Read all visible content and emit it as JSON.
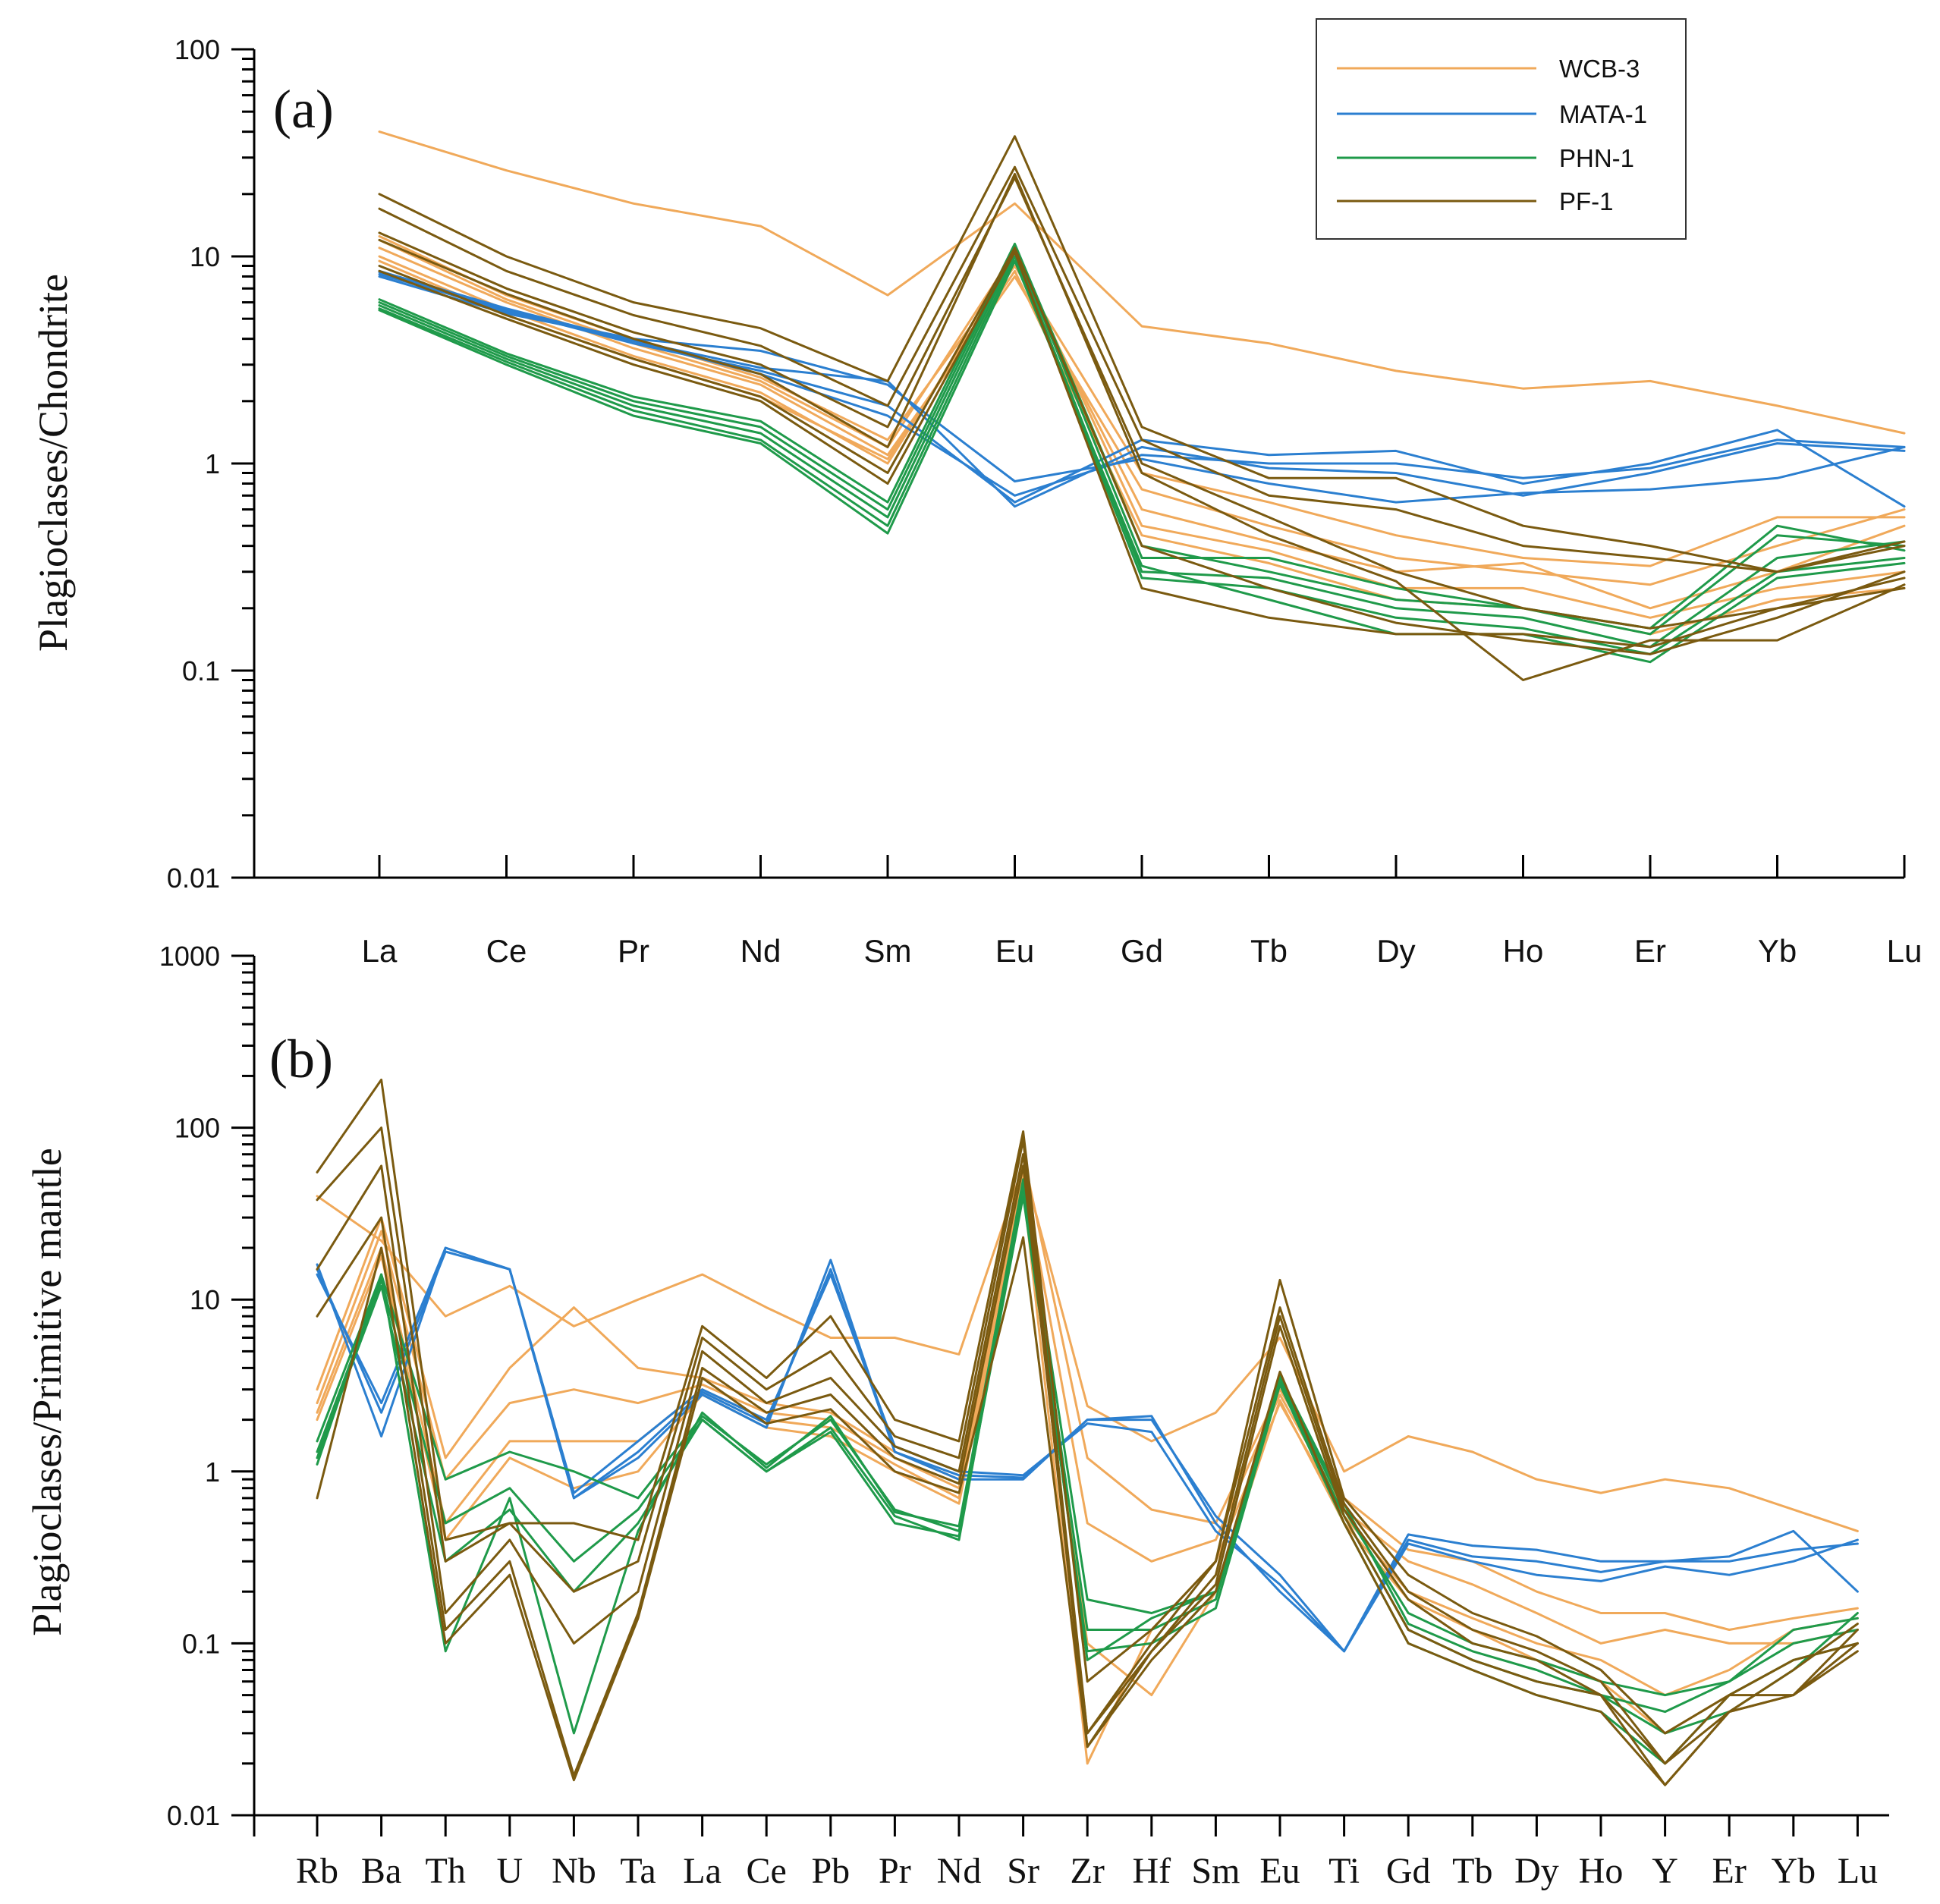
{
  "colors": {
    "WCB-3": "#f0a95a",
    "MATA-1": "#2b7fd0",
    "PHN-1": "#1f9a4a",
    "PF-1": "#7a5a10"
  },
  "legend": {
    "entries": [
      "WCB-3",
      "MATA-1",
      "PHN-1",
      "PF-1"
    ]
  },
  "chart_data": [
    {
      "type": "line",
      "panel": "(a)",
      "ylabel": "Plagioclases/Chondrite",
      "yscale": "log",
      "ylim": [
        0.01,
        100
      ],
      "ytick_labels": [
        "100",
        "10",
        "1",
        "0.1",
        "0.01"
      ],
      "categories": [
        "La",
        "Ce",
        "Pr",
        "Nd",
        "Sm",
        "Eu",
        "Gd",
        "Tb",
        "Dy",
        "Ho",
        "Er",
        "Yb",
        "Lu"
      ],
      "series": [
        {
          "name": "WCB-3",
          "values": [
            40,
            26,
            18,
            14,
            6.5,
            18,
            4.6,
            3.8,
            2.8,
            2.3,
            2.5,
            1.9,
            1.4
          ]
        },
        {
          "name": "WCB-3",
          "values": [
            12.5,
            6.5,
            4.0,
            2.6,
            1.3,
            9,
            0.9,
            0.65,
            0.45,
            0.35,
            0.32,
            0.55,
            0.55
          ]
        },
        {
          "name": "WCB-3",
          "values": [
            11,
            6.0,
            3.6,
            2.4,
            1.1,
            8,
            0.75,
            0.5,
            0.35,
            0.3,
            0.26,
            0.4,
            0.6
          ]
        },
        {
          "name": "WCB-3",
          "values": [
            10,
            5.5,
            3.3,
            2.2,
            1.0,
            9.5,
            0.6,
            0.42,
            0.3,
            0.33,
            0.2,
            0.3,
            0.5
          ]
        },
        {
          "name": "WCB-3",
          "values": [
            12,
            6.2,
            3.8,
            2.5,
            1.2,
            10.5,
            0.5,
            0.38,
            0.25,
            0.25,
            0.18,
            0.25,
            0.3
          ]
        },
        {
          "name": "WCB-3",
          "values": [
            9.5,
            5.2,
            3.2,
            2.1,
            1.05,
            8.5,
            0.45,
            0.33,
            0.22,
            0.2,
            0.15,
            0.22,
            0.25
          ]
        },
        {
          "name": "MATA-1",
          "values": [
            8.5,
            5.6,
            3.9,
            2.9,
            2.5,
            0.62,
            1.2,
            0.95,
            0.9,
            0.7,
            0.9,
            1.25,
            1.15
          ]
        },
        {
          "name": "MATA-1",
          "values": [
            8.0,
            5.3,
            4.0,
            3.5,
            2.4,
            0.82,
            1.05,
            0.8,
            0.65,
            0.72,
            0.75,
            0.85,
            1.2
          ]
        },
        {
          "name": "MATA-1",
          "values": [
            8.2,
            5.5,
            3.8,
            2.8,
            1.9,
            0.65,
            1.3,
            1.1,
            1.15,
            0.8,
            1.0,
            1.45,
            0.62
          ]
        },
        {
          "name": "MATA-1",
          "values": [
            8.4,
            5.4,
            3.9,
            2.7,
            1.7,
            0.7,
            1.1,
            1.0,
            1.0,
            0.85,
            0.95,
            1.3,
            1.2
          ]
        },
        {
          "name": "PHN-1",
          "values": [
            6.0,
            3.3,
            2.0,
            1.5,
            0.6,
            11,
            0.35,
            0.35,
            0.25,
            0.2,
            0.15,
            0.45,
            0.4
          ]
        },
        {
          "name": "PHN-1",
          "values": [
            5.8,
            3.2,
            1.9,
            1.4,
            0.55,
            10.5,
            0.3,
            0.28,
            0.2,
            0.18,
            0.13,
            0.35,
            0.42
          ]
        },
        {
          "name": "PHN-1",
          "values": [
            5.6,
            3.1,
            1.8,
            1.3,
            0.5,
            10,
            0.28,
            0.25,
            0.18,
            0.16,
            0.12,
            0.3,
            0.35
          ]
        },
        {
          "name": "PHN-1",
          "values": [
            6.2,
            3.4,
            2.1,
            1.6,
            0.65,
            11.5,
            0.4,
            0.3,
            0.22,
            0.2,
            0.16,
            0.5,
            0.38
          ]
        },
        {
          "name": "PHN-1",
          "values": [
            5.5,
            3.0,
            1.7,
            1.25,
            0.46,
            9.5,
            0.32,
            0.22,
            0.15,
            0.15,
            0.11,
            0.28,
            0.33
          ]
        },
        {
          "name": "PF-1",
          "values": [
            20,
            10,
            6,
            4.5,
            2.5,
            38,
            1.5,
            0.85,
            0.85,
            0.5,
            0.4,
            0.3,
            0.42
          ]
        },
        {
          "name": "PF-1",
          "values": [
            17,
            8.5,
            5.2,
            3.7,
            1.9,
            27,
            1.3,
            0.7,
            0.6,
            0.4,
            0.35,
            0.3,
            0.4
          ]
        },
        {
          "name": "PF-1",
          "values": [
            13,
            7,
            4.3,
            3,
            1.5,
            24,
            1.0,
            0.55,
            0.3,
            0.2,
            0.16,
            0.2,
            0.28
          ]
        },
        {
          "name": "PF-1",
          "values": [
            12,
            6.6,
            4.0,
            2.7,
            1.2,
            25,
            0.9,
            0.45,
            0.27,
            0.09,
            0.14,
            0.14,
            0.26
          ]
        },
        {
          "name": "PF-1",
          "values": [
            9,
            5.2,
            3.2,
            2.1,
            0.9,
            11,
            0.4,
            0.25,
            0.17,
            0.14,
            0.12,
            0.18,
            0.3
          ]
        },
        {
          "name": "PF-1",
          "values": [
            8.5,
            5.0,
            3.0,
            2.0,
            0.8,
            10.5,
            0.25,
            0.18,
            0.15,
            0.15,
            0.13,
            0.2,
            0.25
          ]
        }
      ]
    },
    {
      "type": "line",
      "panel": "(b)",
      "ylabel": "Plagioclases/Primitive mantle",
      "yscale": "log",
      "ylim": [
        0.01,
        1000
      ],
      "ytick_labels": [
        "1000",
        "100",
        "10",
        "1",
        "0.1",
        "0.01"
      ],
      "categories": [
        "Rb",
        "Ba",
        "Th",
        "U",
        "Nb",
        "Ta",
        "La",
        "Ce",
        "Pb",
        "Pr",
        "Nd",
        "Sr",
        "Zr",
        "Hf",
        "Sm",
        "Eu",
        "Ti",
        "Gd",
        "Tb",
        "Dy",
        "Ho",
        "Y",
        "Er",
        "Yb",
        "Lu"
      ],
      "series": [
        {
          "name": "WCB-3",
          "values": [
            40,
            22,
            8,
            12,
            7,
            10,
            14,
            9,
            6,
            6,
            4.8,
            60,
            2.4,
            1.5,
            2.2,
            6,
            1.0,
            1.6,
            1.3,
            0.9,
            0.75,
            0.9,
            0.8,
            0.6,
            0.45
          ]
        },
        {
          "name": "WCB-3",
          "values": [
            3,
            30,
            1.2,
            4,
            9,
            4,
            3.5,
            2.5,
            2.2,
            1.3,
            0.9,
            70,
            1.2,
            0.6,
            0.5,
            3,
            0.7,
            0.35,
            0.3,
            0.2,
            0.15,
            0.15,
            0.12,
            0.14,
            0.16
          ]
        },
        {
          "name": "WCB-3",
          "values": [
            2.5,
            25,
            0.9,
            2.5,
            3,
            2.5,
            3.2,
            2.2,
            2.0,
            1.2,
            0.8,
            55,
            0.5,
            0.3,
            0.4,
            2.8,
            0.6,
            0.3,
            0.22,
            0.15,
            0.1,
            0.12,
            0.1,
            0.1,
            0.12
          ]
        },
        {
          "name": "WCB-3",
          "values": [
            2.2,
            20,
            0.5,
            1.5,
            1.5,
            1.5,
            3,
            2,
            1.8,
            1.1,
            0.7,
            50,
            0.1,
            0.05,
            0.2,
            2.6,
            0.5,
            0.18,
            0.12,
            0.08,
            0.06,
            0.03,
            0.05,
            0.08,
            0.1
          ]
        },
        {
          "name": "WCB-3",
          "values": [
            2.0,
            18,
            0.4,
            1.2,
            0.8,
            1,
            2.8,
            1.8,
            1.6,
            1.0,
            0.65,
            45,
            0.02,
            0.12,
            0.3,
            2.5,
            0.55,
            0.2,
            0.14,
            0.1,
            0.08,
            0.05,
            0.07,
            0.12,
            0.14
          ]
        },
        {
          "name": "MATA-1",
          "values": [
            16,
            1.6,
            20,
            15,
            0.7,
            1.2,
            2.8,
            1.8,
            17,
            1.3,
            0.9,
            0.9,
            2.0,
            2.1,
            0.5,
            0.2,
            0.09,
            0.43,
            0.37,
            0.35,
            0.3,
            0.3,
            0.3,
            0.35,
            0.38
          ]
        },
        {
          "name": "MATA-1",
          "values": [
            15,
            2.2,
            19,
            15,
            0.75,
            1.5,
            3,
            2,
            14,
            1.4,
            1.0,
            0.95,
            1.9,
            1.7,
            0.45,
            0.22,
            0.09,
            0.38,
            0.3,
            0.25,
            0.23,
            0.28,
            0.25,
            0.3,
            0.4
          ]
        },
        {
          "name": "MATA-1",
          "values": [
            14,
            2.5,
            20,
            15,
            0.7,
            1.3,
            2.9,
            1.9,
            15,
            1.3,
            0.95,
            0.92,
            2.0,
            2.0,
            0.55,
            0.25,
            0.09,
            0.4,
            0.32,
            0.3,
            0.26,
            0.3,
            0.32,
            0.45,
            0.2
          ]
        },
        {
          "name": "PHN-1",
          "values": [
            1.5,
            14,
            0.9,
            1.3,
            1.0,
            0.7,
            2.1,
            1.1,
            2.0,
            0.6,
            0.45,
            50,
            0.18,
            0.15,
            0.2,
            3.5,
            0.6,
            0.15,
            0.1,
            0.08,
            0.06,
            0.05,
            0.06,
            0.1,
            0.12
          ]
        },
        {
          "name": "PHN-1",
          "values": [
            1.3,
            13,
            0.5,
            0.8,
            0.3,
            0.6,
            2.0,
            1.0,
            1.8,
            0.55,
            0.4,
            45,
            0.12,
            0.12,
            0.18,
            3.3,
            0.55,
            0.12,
            0.08,
            0.06,
            0.05,
            0.03,
            0.04,
            0.07,
            0.15
          ]
        },
        {
          "name": "PHN-1",
          "values": [
            1.2,
            12,
            0.3,
            0.6,
            0.2,
            0.5,
            2.0,
            1.0,
            1.7,
            0.5,
            0.42,
            40,
            0.09,
            0.1,
            0.16,
            3.2,
            0.5,
            0.1,
            0.07,
            0.05,
            0.04,
            0.02,
            0.05,
            0.08,
            0.1
          ]
        },
        {
          "name": "PHN-1",
          "values": [
            1.1,
            14,
            0.09,
            0.7,
            0.03,
            0.45,
            2.2,
            1.05,
            2.1,
            0.58,
            0.48,
            48,
            0.08,
            0.14,
            0.2,
            3.6,
            0.65,
            0.13,
            0.09,
            0.07,
            0.05,
            0.04,
            0.06,
            0.12,
            0.14
          ]
        },
        {
          "name": "PF-1",
          "values": [
            55,
            190,
            0.4,
            0.5,
            0.5,
            0.4,
            7,
            3.5,
            8,
            2,
            1.5,
            95,
            0.06,
            0.12,
            0.3,
            13,
            0.7,
            0.25,
            0.15,
            0.11,
            0.07,
            0.03,
            0.05,
            0.05,
            0.1
          ]
        },
        {
          "name": "PF-1",
          "values": [
            38,
            100,
            0.3,
            0.5,
            0.2,
            0.3,
            6,
            3,
            5,
            1.6,
            1.2,
            85,
            0.03,
            0.1,
            0.3,
            9,
            0.65,
            0.2,
            0.12,
            0.09,
            0.06,
            0.02,
            0.04,
            0.05,
            0.12
          ]
        },
        {
          "name": "PF-1",
          "values": [
            15,
            60,
            0.15,
            0.4,
            0.1,
            0.2,
            5,
            2.5,
            3.5,
            1.4,
            1.0,
            70,
            0.025,
            0.09,
            0.25,
            8,
            0.6,
            0.18,
            0.1,
            0.08,
            0.05,
            0.015,
            0.04,
            0.07,
            0.13
          ]
        },
        {
          "name": "PF-1",
          "values": [
            8,
            30,
            0.12,
            0.3,
            0.017,
            0.15,
            4,
            2.2,
            2.8,
            1.2,
            0.85,
            60,
            0.03,
            0.09,
            0.22,
            7,
            0.55,
            0.12,
            0.08,
            0.06,
            0.05,
            0.02,
            0.05,
            0.08,
            0.1
          ]
        },
        {
          "name": "PF-1",
          "values": [
            0.7,
            20,
            0.1,
            0.25,
            0.016,
            0.14,
            3.5,
            1.9,
            2.3,
            1.0,
            0.75,
            23,
            0.025,
            0.08,
            0.2,
            3.8,
            0.5,
            0.1,
            0.07,
            0.05,
            0.04,
            0.015,
            0.04,
            0.05,
            0.09
          ]
        }
      ]
    }
  ]
}
